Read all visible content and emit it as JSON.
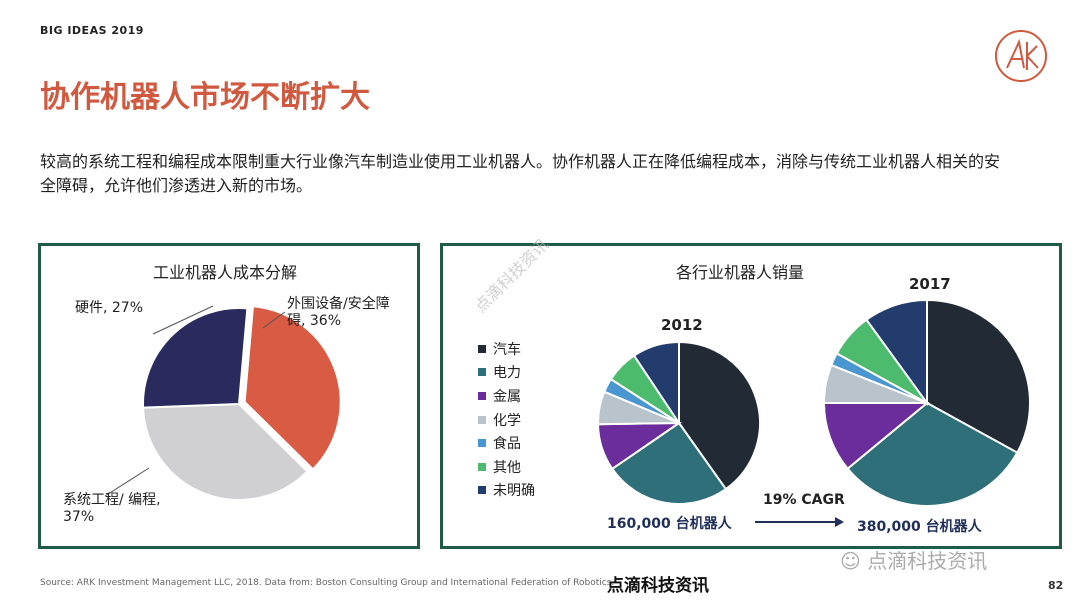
{
  "header": {
    "tag": "BIG IDEAS 2019",
    "logo_text": "ARK"
  },
  "title": "协作机器人市场不断扩大",
  "description": "较高的系统工程和编程成本限制重大行业像汽车制造业使用工业机器人。协作机器人正在降低编程成本，消除与传统工业机器人相关的安全障碍，允许他们渗透进入新的市场。",
  "chart_data": [
    {
      "type": "pie",
      "title": "工业机器人成本分解",
      "slices": [
        {
          "label": "外围设备/安全障碍",
          "value": 36,
          "label_line1": "外围设备/安全障",
          "label_line2": "碍, 36%",
          "color": "#d95b43"
        },
        {
          "label": "系统工程/ 编程",
          "value": 37,
          "label_line1": "系统工程/ 编程,",
          "label_line2": "37%",
          "color": "#d0d0d3"
        },
        {
          "label": "硬件",
          "value": 27,
          "label_line1": "硬件, 27%",
          "label_line2": "",
          "color": "#2a2a5e"
        }
      ]
    },
    {
      "type": "pie",
      "title": "各行业机器人销量",
      "categories": [
        "汽车",
        "电力",
        "金属",
        "化学",
        "食品",
        "其他",
        "未明确"
      ],
      "colors": [
        "#222a35",
        "#2e6f7a",
        "#6b2c9c",
        "#b9c3cc",
        "#4a96d0",
        "#4cbb6e",
        "#223c6e"
      ],
      "series": [
        {
          "name": "2012",
          "values": [
            43,
            27,
            10,
            7,
            3,
            7,
            10
          ],
          "total_label": "160,000 台机器人"
        },
        {
          "name": "2017",
          "values": [
            33,
            31,
            11,
            6,
            2,
            7,
            10
          ],
          "total_label": "380,000 台机器人"
        }
      ],
      "annotation": "19% CAGR"
    }
  ],
  "source": "Source: ARK Investment Management LLC, 2018. Data from: Boston Consulting Group and International Federation of Robotics.",
  "watermarks": {
    "bottom": "点滴科技资讯",
    "wechat": "点滴科技资讯",
    "diagonal": "点滴科技资讯"
  },
  "page_number": "82"
}
